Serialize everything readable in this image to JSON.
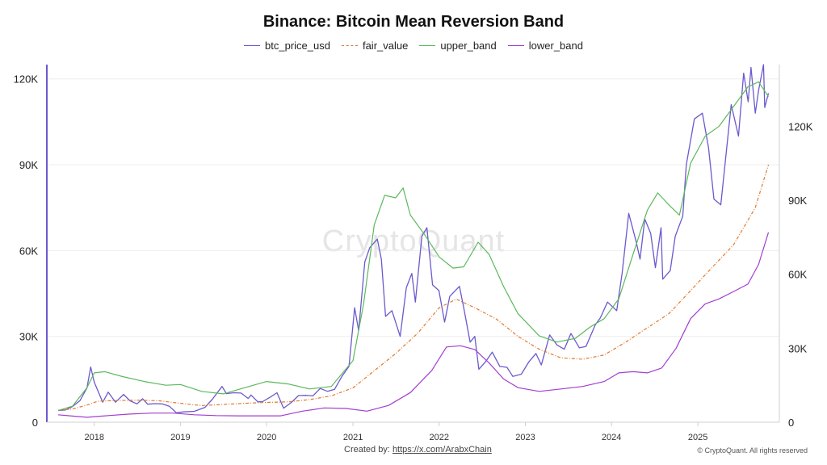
{
  "chart_data": {
    "type": "line",
    "title": "Binance: Bitcoin Mean Reversion Band",
    "legend": [
      "btc_price_usd",
      "fair_value",
      "upper_band",
      "lower_band"
    ],
    "x_ticks": [
      "2018",
      "2019",
      "2020",
      "2021",
      "2022",
      "2023",
      "2024",
      "2025"
    ],
    "y_left_ticks": [
      "0",
      "30K",
      "60K",
      "90K",
      "120K"
    ],
    "y_right_ticks": [
      "0",
      "30K",
      "60K",
      "90K",
      "120K"
    ],
    "y_left_range": [
      0,
      125000
    ],
    "y_right_range": [
      0,
      145000
    ],
    "colors": {
      "btc_price_usd": "#6a5acd",
      "fair_value": "#e07a2f",
      "upper_band": "#5cb85c",
      "lower_band": "#a23ecf"
    },
    "series": [
      {
        "name": "btc_price_usd",
        "axis": "left",
        "points": [
          [
            "2017-08-01",
            4100
          ],
          [
            "2017-09-01",
            4300
          ],
          [
            "2017-10-01",
            5500
          ],
          [
            "2017-11-01",
            7500
          ],
          [
            "2017-12-01",
            12000
          ],
          [
            "2017-12-17",
            19300
          ],
          [
            "2018-01-01",
            14000
          ],
          [
            "2018-02-06",
            7000
          ],
          [
            "2018-03-01",
            10500
          ],
          [
            "2018-04-01",
            7000
          ],
          [
            "2018-05-05",
            9700
          ],
          [
            "2018-06-01",
            7500
          ],
          [
            "2018-07-01",
            6400
          ],
          [
            "2018-07-25",
            8200
          ],
          [
            "2018-08-15",
            6300
          ],
          [
            "2018-09-15",
            6500
          ],
          [
            "2018-10-15",
            6400
          ],
          [
            "2018-11-15",
            5600
          ],
          [
            "2018-12-15",
            3300
          ],
          [
            "2019-01-15",
            3600
          ],
          [
            "2019-03-01",
            3800
          ],
          [
            "2019-04-15",
            5200
          ],
          [
            "2019-05-15",
            7900
          ],
          [
            "2019-06-26",
            12500
          ],
          [
            "2019-07-15",
            10000
          ],
          [
            "2019-08-15",
            10300
          ],
          [
            "2019-09-15",
            10200
          ],
          [
            "2019-10-15",
            8300
          ],
          [
            "2019-10-27",
            9500
          ],
          [
            "2019-11-25",
            7100
          ],
          [
            "2019-12-15",
            7200
          ],
          [
            "2020-01-15",
            8700
          ],
          [
            "2020-02-14",
            10300
          ],
          [
            "2020-03-13",
            4900
          ],
          [
            "2020-04-15",
            6900
          ],
          [
            "2020-05-15",
            9300
          ],
          [
            "2020-06-15",
            9400
          ],
          [
            "2020-07-15",
            9200
          ],
          [
            "2020-08-15",
            11800
          ],
          [
            "2020-09-15",
            10800
          ],
          [
            "2020-10-15",
            11500
          ],
          [
            "2020-11-15",
            16000
          ],
          [
            "2020-12-15",
            19500
          ],
          [
            "2021-01-08",
            40000
          ],
          [
            "2021-01-25",
            32000
          ],
          [
            "2021-02-20",
            56000
          ],
          [
            "2021-03-13",
            61000
          ],
          [
            "2021-04-14",
            64000
          ],
          [
            "2021-05-01",
            57000
          ],
          [
            "2021-05-19",
            37000
          ],
          [
            "2021-06-15",
            39000
          ],
          [
            "2021-07-20",
            30000
          ],
          [
            "2021-08-15",
            47000
          ],
          [
            "2021-09-07",
            52000
          ],
          [
            "2021-09-22",
            42000
          ],
          [
            "2021-10-20",
            65000
          ],
          [
            "2021-11-10",
            68000
          ],
          [
            "2021-12-04",
            48000
          ],
          [
            "2021-12-31",
            46000
          ],
          [
            "2022-01-24",
            35000
          ],
          [
            "2022-02-15",
            44000
          ],
          [
            "2022-03-28",
            47500
          ],
          [
            "2022-04-15",
            40000
          ],
          [
            "2022-05-12",
            28000
          ],
          [
            "2022-06-01",
            30000
          ],
          [
            "2022-06-18",
            18500
          ],
          [
            "2022-07-15",
            21000
          ],
          [
            "2022-08-14",
            24500
          ],
          [
            "2022-09-15",
            19500
          ],
          [
            "2022-10-15",
            19200
          ],
          [
            "2022-11-09",
            16000
          ],
          [
            "2022-12-15",
            16800
          ],
          [
            "2023-01-15",
            21000
          ],
          [
            "2023-02-15",
            24000
          ],
          [
            "2023-03-10",
            20000
          ],
          [
            "2023-04-14",
            30500
          ],
          [
            "2023-05-15",
            27000
          ],
          [
            "2023-06-15",
            25500
          ],
          [
            "2023-07-13",
            31000
          ],
          [
            "2023-08-18",
            26000
          ],
          [
            "2023-09-15",
            26500
          ],
          [
            "2023-10-24",
            34000
          ],
          [
            "2023-11-15",
            36500
          ],
          [
            "2023-12-15",
            42000
          ],
          [
            "2024-01-23",
            39000
          ],
          [
            "2024-02-15",
            52000
          ],
          [
            "2024-03-14",
            73000
          ],
          [
            "2024-04-15",
            63000
          ],
          [
            "2024-05-01",
            57000
          ],
          [
            "2024-05-21",
            71000
          ],
          [
            "2024-06-15",
            66000
          ],
          [
            "2024-07-05",
            54000
          ],
          [
            "2024-07-29",
            68000
          ],
          [
            "2024-08-05",
            50000
          ],
          [
            "2024-09-06",
            53000
          ],
          [
            "2024-09-27",
            65000
          ],
          [
            "2024-10-29",
            72000
          ],
          [
            "2024-11-13",
            90000
          ],
          [
            "2024-12-17",
            106000
          ],
          [
            "2025-01-20",
            108000
          ],
          [
            "2025-02-15",
            96000
          ],
          [
            "2025-03-10",
            78000
          ],
          [
            "2025-04-08",
            76000
          ],
          [
            "2025-05-22",
            111000
          ],
          [
            "2025-06-22",
            100000
          ],
          [
            "2025-07-14",
            122000
          ],
          [
            "2025-08-02",
            112000
          ],
          [
            "2025-08-14",
            124000
          ],
          [
            "2025-09-01",
            108000
          ],
          [
            "2025-09-15",
            116000
          ],
          [
            "2025-10-06",
            125000
          ],
          [
            "2025-10-11",
            110000
          ],
          [
            "2025-10-27",
            115000
          ]
        ]
      },
      {
        "name": "fair_value",
        "axis": "left",
        "points": [
          [
            "2017-08-01",
            4200
          ],
          [
            "2017-10-01",
            4600
          ],
          [
            "2017-12-01",
            6000
          ],
          [
            "2018-01-15",
            7300
          ],
          [
            "2018-04-01",
            7600
          ],
          [
            "2018-07-01",
            7700
          ],
          [
            "2018-10-01",
            7500
          ],
          [
            "2019-01-01",
            6600
          ],
          [
            "2019-04-01",
            5800
          ],
          [
            "2019-07-01",
            6200
          ],
          [
            "2019-10-01",
            6600
          ],
          [
            "2020-01-01",
            6900
          ],
          [
            "2020-04-01",
            7100
          ],
          [
            "2020-07-01",
            7900
          ],
          [
            "2020-10-01",
            9200
          ],
          [
            "2021-01-01",
            12000
          ],
          [
            "2021-04-01",
            18000
          ],
          [
            "2021-07-01",
            24000
          ],
          [
            "2021-10-01",
            31000
          ],
          [
            "2022-01-01",
            40000
          ],
          [
            "2022-03-15",
            43000
          ],
          [
            "2022-06-01",
            40000
          ],
          [
            "2022-09-01",
            36000
          ],
          [
            "2022-12-01",
            30000
          ],
          [
            "2023-03-01",
            25500
          ],
          [
            "2023-06-01",
            22500
          ],
          [
            "2023-09-01",
            22000
          ],
          [
            "2023-12-01",
            23500
          ],
          [
            "2024-03-01",
            28000
          ],
          [
            "2024-06-01",
            33000
          ],
          [
            "2024-09-01",
            38000
          ],
          [
            "2024-12-01",
            46000
          ],
          [
            "2025-03-01",
            54000
          ],
          [
            "2025-06-01",
            62000
          ],
          [
            "2025-09-01",
            75000
          ],
          [
            "2025-10-27",
            90000
          ]
        ]
      },
      {
        "name": "upper_band",
        "axis": "right",
        "points": [
          [
            "2017-08-01",
            4700
          ],
          [
            "2017-10-01",
            6500
          ],
          [
            "2017-12-01",
            14000
          ],
          [
            "2018-01-01",
            20000
          ],
          [
            "2018-02-15",
            20500
          ],
          [
            "2018-05-01",
            18500
          ],
          [
            "2018-08-01",
            16500
          ],
          [
            "2018-11-01",
            15000
          ],
          [
            "2019-01-01",
            15300
          ],
          [
            "2019-04-01",
            12500
          ],
          [
            "2019-07-01",
            11500
          ],
          [
            "2019-10-01",
            14000
          ],
          [
            "2020-01-01",
            16500
          ],
          [
            "2020-04-01",
            15500
          ],
          [
            "2020-07-01",
            13500
          ],
          [
            "2020-10-01",
            14500
          ],
          [
            "2021-01-01",
            25000
          ],
          [
            "2021-02-15",
            48000
          ],
          [
            "2021-04-01",
            80000
          ],
          [
            "2021-05-15",
            92000
          ],
          [
            "2021-07-01",
            91000
          ],
          [
            "2021-08-01",
            95000
          ],
          [
            "2021-09-01",
            84000
          ],
          [
            "2021-11-01",
            76000
          ],
          [
            "2022-01-01",
            67000
          ],
          [
            "2022-03-01",
            62500
          ],
          [
            "2022-04-15",
            63000
          ],
          [
            "2022-06-15",
            73000
          ],
          [
            "2022-08-01",
            68000
          ],
          [
            "2022-10-01",
            55000
          ],
          [
            "2022-12-01",
            44000
          ],
          [
            "2023-03-01",
            35000
          ],
          [
            "2023-05-15",
            32500
          ],
          [
            "2023-08-01",
            34000
          ],
          [
            "2023-10-01",
            38500
          ],
          [
            "2023-12-01",
            42000
          ],
          [
            "2024-02-01",
            50000
          ],
          [
            "2024-04-01",
            68000
          ],
          [
            "2024-06-01",
            86000
          ],
          [
            "2024-07-15",
            93000
          ],
          [
            "2024-09-01",
            88000
          ],
          [
            "2024-10-15",
            84000
          ],
          [
            "2024-12-01",
            105000
          ],
          [
            "2025-02-01",
            116000
          ],
          [
            "2025-04-01",
            120000
          ],
          [
            "2025-06-01",
            128000
          ],
          [
            "2025-08-01",
            136000
          ],
          [
            "2025-09-15",
            138000
          ],
          [
            "2025-10-27",
            132000
          ]
        ]
      },
      {
        "name": "lower_band",
        "axis": "right",
        "points": [
          [
            "2017-08-01",
            3000
          ],
          [
            "2017-10-01",
            2500
          ],
          [
            "2017-12-01",
            2000
          ],
          [
            "2018-03-01",
            2700
          ],
          [
            "2018-06-01",
            3300
          ],
          [
            "2018-09-01",
            3700
          ],
          [
            "2018-12-01",
            3700
          ],
          [
            "2019-03-01",
            3000
          ],
          [
            "2019-06-01",
            2700
          ],
          [
            "2019-09-01",
            2600
          ],
          [
            "2019-12-01",
            2600
          ],
          [
            "2020-03-01",
            2600
          ],
          [
            "2020-06-01",
            4500
          ],
          [
            "2020-09-01",
            5800
          ],
          [
            "2020-12-01",
            5600
          ],
          [
            "2021-03-01",
            4500
          ],
          [
            "2021-06-01",
            6800
          ],
          [
            "2021-09-01",
            12000
          ],
          [
            "2021-12-01",
            21000
          ],
          [
            "2022-02-01",
            30500
          ],
          [
            "2022-04-01",
            31000
          ],
          [
            "2022-06-01",
            29500
          ],
          [
            "2022-08-01",
            24000
          ],
          [
            "2022-10-01",
            17500
          ],
          [
            "2022-12-01",
            14000
          ],
          [
            "2023-03-01",
            12500
          ],
          [
            "2023-06-01",
            13500
          ],
          [
            "2023-09-01",
            14500
          ],
          [
            "2023-12-01",
            16500
          ],
          [
            "2024-02-01",
            20000
          ],
          [
            "2024-04-01",
            20500
          ],
          [
            "2024-06-01",
            20000
          ],
          [
            "2024-08-01",
            22000
          ],
          [
            "2024-10-01",
            30000
          ],
          [
            "2024-12-01",
            42000
          ],
          [
            "2025-02-01",
            48000
          ],
          [
            "2025-04-01",
            50000
          ],
          [
            "2025-06-01",
            53000
          ],
          [
            "2025-08-01",
            56000
          ],
          [
            "2025-09-15",
            64000
          ],
          [
            "2025-10-27",
            77000
          ]
        ]
      }
    ]
  },
  "watermark": "CryptoQuant",
  "credit_prefix": "Created by:",
  "credit_link": "https://x.com/ArabxChain",
  "copyright": "© CryptoQuant. All rights reserved"
}
